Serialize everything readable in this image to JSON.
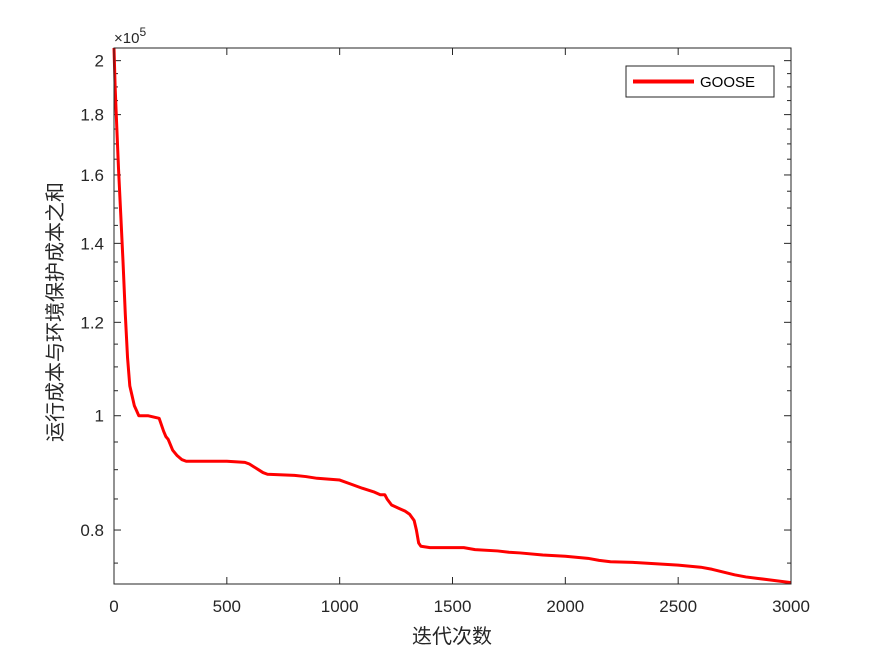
{
  "chart_data": {
    "type": "line",
    "xlabel": "迭代次数",
    "ylabel": "运行成本与环境保护成本之和",
    "y_exponent_label": "×10",
    "y_exponent_power": "5",
    "y_scale": "log",
    "xlim": [
      0,
      3000
    ],
    "ylim": [
      0.72,
      2.05
    ],
    "x_ticks": [
      0,
      500,
      1000,
      1500,
      2000,
      2500,
      3000
    ],
    "x_tick_labels": [
      "0",
      "500",
      "1000",
      "1500",
      "2000",
      "2500",
      "3000"
    ],
    "y_ticks": [
      0.8,
      1.0,
      1.2,
      1.4,
      1.6,
      1.8,
      2.0
    ],
    "y_tick_labels": [
      "0.8",
      "1",
      "1.2",
      "1.4",
      "1.6",
      "1.8",
      "2"
    ],
    "grid": false,
    "legend_position": "top-right",
    "series": [
      {
        "name": "GOOSE",
        "color": "#ff0000",
        "x": [
          0,
          5,
          10,
          20,
          30,
          40,
          50,
          60,
          70,
          80,
          90,
          100,
          110,
          120,
          130,
          150,
          200,
          220,
          230,
          240,
          260,
          280,
          300,
          320,
          340,
          400,
          500,
          580,
          600,
          620,
          640,
          660,
          680,
          800,
          850,
          900,
          1000,
          1050,
          1100,
          1150,
          1180,
          1200,
          1210,
          1230,
          1260,
          1290,
          1310,
          1330,
          1340,
          1350,
          1360,
          1400,
          1550,
          1600,
          1700,
          1750,
          1800,
          1900,
          2000,
          2100,
          2150,
          2200,
          2300,
          2400,
          2500,
          2600,
          2650,
          2700,
          2750,
          2800,
          2850,
          2900,
          3000
        ],
        "y": [
          2.05,
          1.9,
          1.8,
          1.62,
          1.48,
          1.35,
          1.22,
          1.12,
          1.06,
          1.04,
          1.02,
          1.01,
          1.0,
          1.0,
          1.0,
          1.0,
          0.995,
          0.97,
          0.96,
          0.955,
          0.935,
          0.925,
          0.918,
          0.915,
          0.915,
          0.915,
          0.915,
          0.913,
          0.91,
          0.905,
          0.9,
          0.895,
          0.892,
          0.89,
          0.888,
          0.885,
          0.882,
          0.875,
          0.868,
          0.862,
          0.857,
          0.857,
          0.85,
          0.84,
          0.835,
          0.83,
          0.825,
          0.815,
          0.8,
          0.78,
          0.775,
          0.773,
          0.773,
          0.77,
          0.768,
          0.766,
          0.765,
          0.762,
          0.76,
          0.757,
          0.754,
          0.752,
          0.751,
          0.749,
          0.747,
          0.744,
          0.741,
          0.737,
          0.733,
          0.73,
          0.728,
          0.726,
          0.722
        ]
      }
    ]
  }
}
